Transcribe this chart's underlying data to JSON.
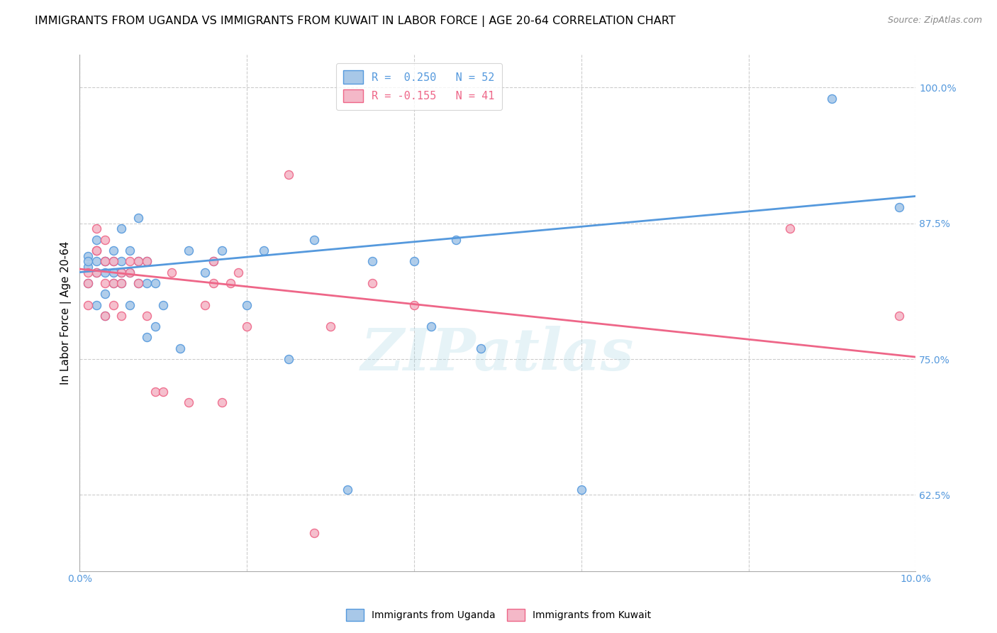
{
  "title": "IMMIGRANTS FROM UGANDA VS IMMIGRANTS FROM KUWAIT IN LABOR FORCE | AGE 20-64 CORRELATION CHART",
  "source": "Source: ZipAtlas.com",
  "ylabel": "In Labor Force | Age 20-64",
  "xlim": [
    0.0,
    0.1
  ],
  "ylim": [
    0.555,
    1.03
  ],
  "yticks": [
    0.625,
    0.75,
    0.875,
    1.0
  ],
  "ytick_labels": [
    "62.5%",
    "75.0%",
    "87.5%",
    "100.0%"
  ],
  "xticks": [
    0.0,
    0.02,
    0.04,
    0.06,
    0.08,
    0.1
  ],
  "xtick_labels": [
    "0.0%",
    "",
    "",
    "",
    "",
    "10.0%"
  ],
  "watermark": "ZIPatlas",
  "uganda_color": "#a8c8e8",
  "kuwait_color": "#f4b8c8",
  "uganda_line_color": "#5599dd",
  "kuwait_line_color": "#ee6688",
  "tick_color": "#5599dd",
  "legend_uganda_label": "R =  0.250   N = 52",
  "legend_kuwait_label": "R = -0.155   N = 41",
  "uganda_x": [
    0.001,
    0.001,
    0.001,
    0.001,
    0.002,
    0.002,
    0.002,
    0.002,
    0.002,
    0.003,
    0.003,
    0.003,
    0.003,
    0.003,
    0.004,
    0.004,
    0.004,
    0.004,
    0.005,
    0.005,
    0.005,
    0.005,
    0.006,
    0.006,
    0.006,
    0.007,
    0.007,
    0.007,
    0.008,
    0.008,
    0.008,
    0.009,
    0.009,
    0.01,
    0.012,
    0.013,
    0.015,
    0.016,
    0.017,
    0.02,
    0.022,
    0.025,
    0.028,
    0.032,
    0.035,
    0.04,
    0.042,
    0.045,
    0.048,
    0.06,
    0.09,
    0.098
  ],
  "uganda_y": [
    0.82,
    0.835,
    0.845,
    0.84,
    0.8,
    0.83,
    0.84,
    0.85,
    0.86,
    0.79,
    0.81,
    0.83,
    0.84,
    0.84,
    0.82,
    0.83,
    0.84,
    0.85,
    0.82,
    0.83,
    0.84,
    0.87,
    0.8,
    0.83,
    0.85,
    0.82,
    0.84,
    0.88,
    0.77,
    0.82,
    0.84,
    0.78,
    0.82,
    0.8,
    0.76,
    0.85,
    0.83,
    0.84,
    0.85,
    0.8,
    0.85,
    0.75,
    0.86,
    0.63,
    0.84,
    0.84,
    0.78,
    0.86,
    0.76,
    0.63,
    0.99,
    0.89
  ],
  "kuwait_x": [
    0.001,
    0.001,
    0.001,
    0.002,
    0.002,
    0.002,
    0.002,
    0.003,
    0.003,
    0.003,
    0.003,
    0.004,
    0.004,
    0.004,
    0.005,
    0.005,
    0.005,
    0.006,
    0.006,
    0.007,
    0.007,
    0.008,
    0.008,
    0.009,
    0.01,
    0.011,
    0.013,
    0.015,
    0.016,
    0.016,
    0.017,
    0.018,
    0.019,
    0.02,
    0.025,
    0.028,
    0.03,
    0.035,
    0.04,
    0.085,
    0.098
  ],
  "kuwait_y": [
    0.8,
    0.82,
    0.83,
    0.83,
    0.85,
    0.85,
    0.87,
    0.79,
    0.82,
    0.84,
    0.86,
    0.8,
    0.82,
    0.84,
    0.79,
    0.82,
    0.83,
    0.83,
    0.84,
    0.82,
    0.84,
    0.79,
    0.84,
    0.72,
    0.72,
    0.83,
    0.71,
    0.8,
    0.82,
    0.84,
    0.71,
    0.82,
    0.83,
    0.78,
    0.92,
    0.59,
    0.78,
    0.82,
    0.8,
    0.87,
    0.79
  ],
  "background_color": "#ffffff",
  "grid_color": "#cccccc",
  "title_fontsize": 11.5,
  "axis_label_fontsize": 11,
  "tick_fontsize": 10,
  "legend_fontsize": 11
}
